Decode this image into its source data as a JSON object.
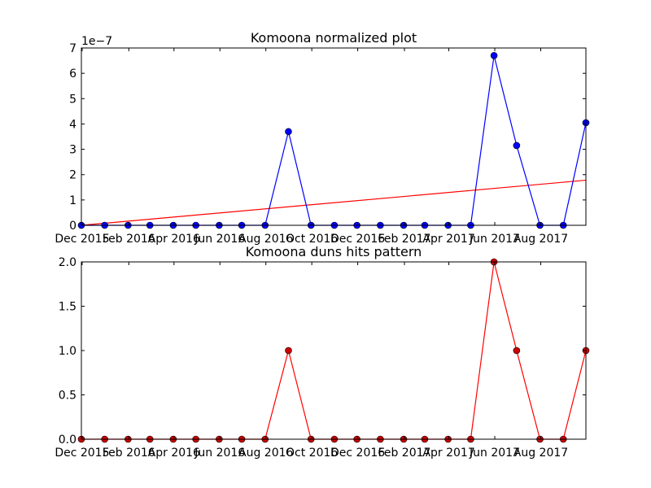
{
  "colors": {
    "blue": "#0000ff",
    "red": "#ff0000",
    "red_marker": "#cc0000",
    "axes": "#000000"
  },
  "chart_data": [
    {
      "type": "line",
      "title": "Komoona normalized plot",
      "exponent_label": "1e−7",
      "xlabel": "",
      "ylabel": "",
      "x": [
        "2015-11-30",
        "2015-12-31",
        "2016-01-31",
        "2016-02-29",
        "2016-03-31",
        "2016-04-30",
        "2016-05-31",
        "2016-06-30",
        "2016-07-31",
        "2016-08-31",
        "2016-09-30",
        "2016-10-31",
        "2016-11-30",
        "2016-12-31",
        "2017-01-31",
        "2017-02-28",
        "2017-03-31",
        "2017-04-30",
        "2017-05-31",
        "2017-06-30",
        "2017-07-31",
        "2017-08-31",
        "2017-09-30"
      ],
      "xlim": [
        "2015-11-30",
        "2017-09-30"
      ],
      "ylim": [
        0,
        7
      ],
      "yticks": [
        "0",
        "1",
        "2",
        "3",
        "4",
        "5",
        "6",
        "7"
      ],
      "xticks": [
        {
          "date": "2015-12-01",
          "label": "Dec 2015"
        },
        {
          "date": "2016-02-01",
          "label": "Feb 2016"
        },
        {
          "date": "2016-04-01",
          "label": "Apr 2016"
        },
        {
          "date": "2016-06-01",
          "label": "Jun 2016"
        },
        {
          "date": "2016-08-01",
          "label": "Aug 2016"
        },
        {
          "date": "2016-10-01",
          "label": "Oct 2016"
        },
        {
          "date": "2016-12-01",
          "label": "Dec 2016"
        },
        {
          "date": "2017-02-01",
          "label": "Feb 2017"
        },
        {
          "date": "2017-04-01",
          "label": "Apr 2017"
        },
        {
          "date": "2017-06-01",
          "label": "Jun 2017"
        },
        {
          "date": "2017-08-01",
          "label": "Aug 2017"
        }
      ],
      "series": [
        {
          "values": [
            0,
            0,
            0,
            0,
            0,
            0,
            0,
            0,
            0,
            3.7,
            0,
            0,
            0,
            0,
            0,
            0,
            0,
            0,
            6.7,
            3.15,
            0,
            0,
            4.05
          ],
          "color": "#0000ff",
          "marker": "circle"
        }
      ],
      "trend_line": {
        "x": [
          "2015-11-30",
          "2017-09-30"
        ],
        "values": [
          0,
          1.78
        ],
        "color": "#ff0000"
      }
    },
    {
      "type": "line",
      "title": "Komoona duns hits pattern",
      "xlabel": "",
      "ylabel": "",
      "x": [
        "2015-11-30",
        "2015-12-31",
        "2016-01-31",
        "2016-02-29",
        "2016-03-31",
        "2016-04-30",
        "2016-05-31",
        "2016-06-30",
        "2016-07-31",
        "2016-08-31",
        "2016-09-30",
        "2016-10-31",
        "2016-11-30",
        "2016-12-31",
        "2017-01-31",
        "2017-02-28",
        "2017-03-31",
        "2017-04-30",
        "2017-05-31",
        "2017-06-30",
        "2017-07-31",
        "2017-08-31",
        "2017-09-30"
      ],
      "xlim": [
        "2015-11-30",
        "2017-09-30"
      ],
      "ylim": [
        0,
        2
      ],
      "yticks": [
        "0.0",
        "0.5",
        "1.0",
        "1.5",
        "2.0"
      ],
      "xticks": [
        {
          "date": "2015-12-01",
          "label": "Dec 2015"
        },
        {
          "date": "2016-02-01",
          "label": "Feb 2016"
        },
        {
          "date": "2016-04-01",
          "label": "Apr 2016"
        },
        {
          "date": "2016-06-01",
          "label": "Jun 2016"
        },
        {
          "date": "2016-08-01",
          "label": "Aug 2016"
        },
        {
          "date": "2016-10-01",
          "label": "Oct 2016"
        },
        {
          "date": "2016-12-01",
          "label": "Dec 2016"
        },
        {
          "date": "2017-02-01",
          "label": "Feb 2017"
        },
        {
          "date": "2017-04-01",
          "label": "Apr 2017"
        },
        {
          "date": "2017-06-01",
          "label": "Jun 2017"
        },
        {
          "date": "2017-08-01",
          "label": "Aug 2017"
        }
      ],
      "series": [
        {
          "values": [
            0,
            0,
            0,
            0,
            0,
            0,
            0,
            0,
            0,
            1,
            0,
            0,
            0,
            0,
            0,
            0,
            0,
            0,
            2,
            1,
            0,
            0,
            1
          ],
          "color": "#ff0000",
          "marker": "circle"
        }
      ]
    }
  ]
}
